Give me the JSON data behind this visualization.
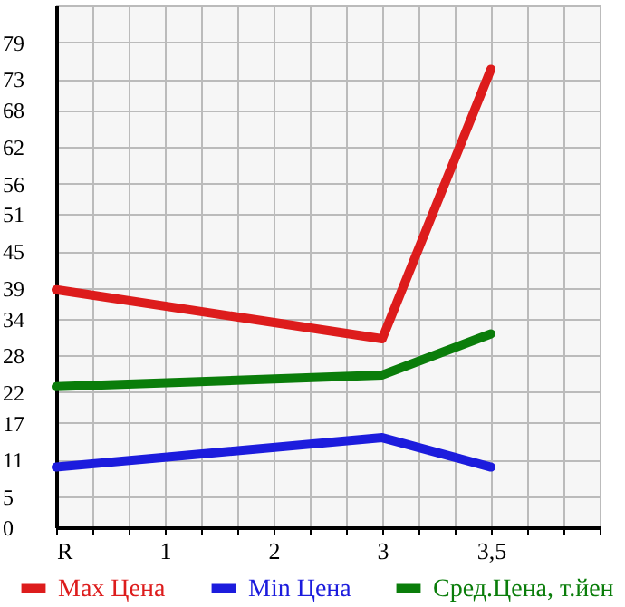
{
  "chart_data": {
    "type": "line",
    "categories": [
      "R",
      "1",
      "2",
      "3",
      "3,5",
      null
    ],
    "ylim": [
      0,
      85
    ],
    "yticks": [
      0,
      5,
      11,
      17,
      22,
      28,
      34,
      39,
      45,
      51,
      56,
      62,
      68,
      73,
      79
    ],
    "series": [
      {
        "name": "Max Цена",
        "color": "#dd1c1c",
        "x": [
          "R",
          "3",
          "3,5"
        ],
        "values": [
          38.7,
          30.7,
          74.6
        ]
      },
      {
        "name": "Min Цена",
        "color": "#1c1cdd",
        "x": [
          "R",
          "3",
          "3,5"
        ],
        "values": [
          9.8,
          14.6,
          9.8
        ]
      },
      {
        "name": "Сред.Цена, т.йен",
        "color": "#0a7d0a",
        "x": [
          "R",
          "3",
          "3,5"
        ],
        "values": [
          22.9,
          24.8,
          31.5
        ]
      }
    ],
    "grid": true,
    "legend": "bottom"
  }
}
